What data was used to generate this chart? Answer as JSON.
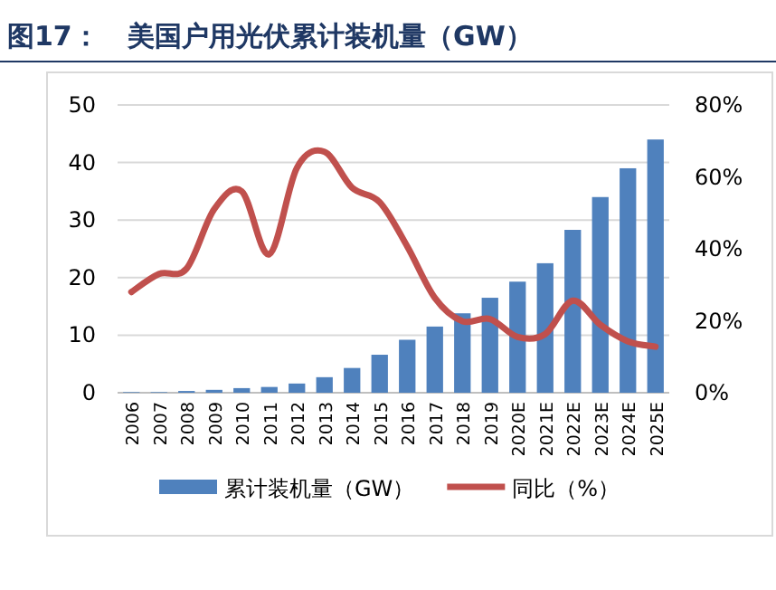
{
  "chart_data": {
    "type": "bar",
    "title": "图17：   美国户用光伏累计装机量（GW）",
    "categories": [
      "2006",
      "2007",
      "2008",
      "2009",
      "2010",
      "2011",
      "2012",
      "2013",
      "2014",
      "2015",
      "2016",
      "2017",
      "2018",
      "2019",
      "2020E",
      "2021E",
      "2022E",
      "2023E",
      "2024E",
      "2025E"
    ],
    "series": [
      {
        "name": "累计装机量（GW）",
        "color": "#4f81bd",
        "values": [
          0.1,
          0.1,
          0.3,
          0.5,
          0.8,
          1.0,
          1.6,
          2.7,
          4.3,
          6.6,
          9.2,
          11.5,
          13.8,
          16.5,
          19.3,
          22.5,
          28.3,
          34,
          39,
          44
        ]
      },
      {
        "name": "同比（%）",
        "type": "line",
        "axis": "y2",
        "color": "#c0504d",
        "values": [
          28,
          33,
          34.5,
          51,
          56,
          38.5,
          62.5,
          67,
          57,
          53,
          40.7,
          26.4,
          19.9,
          20.5,
          15.5,
          16.3,
          25.6,
          18.9,
          14.3,
          12.8
        ]
      }
    ],
    "ylim": [
      0,
      50
    ],
    "yticks": [
      0,
      10,
      20,
      30,
      40,
      50
    ],
    "y2lim": [
      0,
      80
    ],
    "y2ticks": [
      {
        "value": 0,
        "label": "0%"
      },
      {
        "value": 20,
        "label": "20%"
      },
      {
        "value": 40,
        "label": "40%"
      },
      {
        "value": 60,
        "label": "60%"
      },
      {
        "value": 80,
        "label": "80%"
      }
    ],
    "grid": "y",
    "legend": "bottom"
  }
}
